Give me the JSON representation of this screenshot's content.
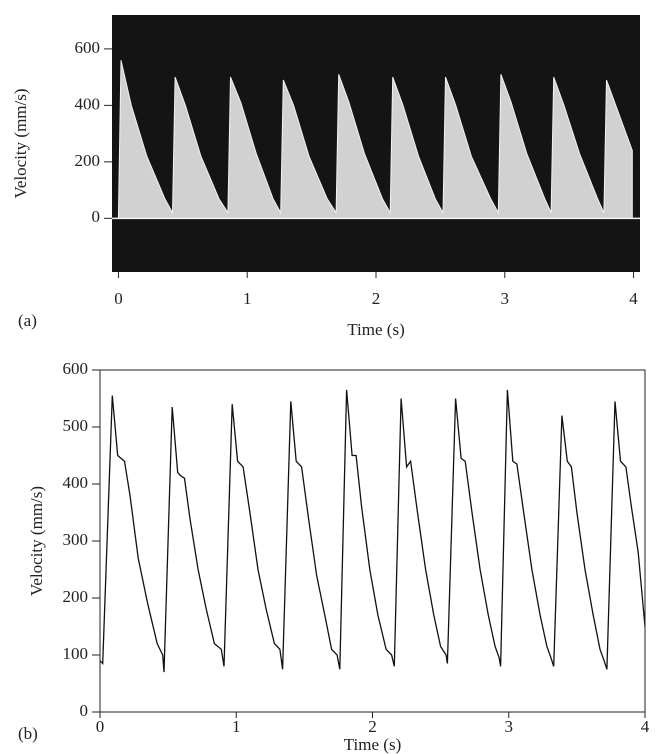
{
  "chart_data": [
    {
      "type": "area",
      "panel_label": "(a)",
      "xlabel": "Time (s)",
      "ylabel": "Velocity (mm/s)",
      "background": "#141414",
      "color": "#f2f2f2",
      "xlim": [
        -0.05,
        4.05
      ],
      "ylim": [
        -190,
        720
      ],
      "xticks": [
        0,
        1,
        2,
        3,
        4
      ],
      "yticks": [
        0,
        200,
        400,
        600
      ],
      "x": [
        0,
        0.02,
        0.1,
        0.22,
        0.36,
        0.42,
        0.44,
        0.52,
        0.64,
        0.78,
        0.85,
        0.87,
        0.95,
        1.07,
        1.2,
        1.26,
        1.28,
        1.36,
        1.48,
        1.62,
        1.69,
        1.71,
        1.79,
        1.91,
        2.05,
        2.11,
        2.13,
        2.21,
        2.33,
        2.46,
        2.52,
        2.54,
        2.62,
        2.74,
        2.89,
        2.95,
        2.97,
        3.05,
        3.17,
        3.31,
        3.36,
        3.38,
        3.46,
        3.58,
        3.72,
        3.77,
        3.79,
        3.87,
        3.99
      ],
      "values": [
        0,
        560,
        400,
        220,
        70,
        20,
        500,
        400,
        220,
        70,
        20,
        500,
        410,
        230,
        70,
        20,
        490,
        400,
        220,
        70,
        20,
        510,
        410,
        230,
        70,
        20,
        500,
        400,
        220,
        70,
        20,
        500,
        400,
        220,
        70,
        20,
        510,
        410,
        230,
        70,
        20,
        500,
        400,
        230,
        70,
        20,
        490,
        390,
        240
      ]
    },
    {
      "type": "line",
      "panel_label": "(b)",
      "xlabel": "Time (s)",
      "ylabel": "Velocity (mm/s)",
      "color": "#111111",
      "xlim": [
        0,
        4
      ],
      "ylim": [
        0,
        600
      ],
      "xticks": [
        0,
        1,
        2,
        3,
        4
      ],
      "yticks": [
        0,
        100,
        200,
        300,
        400,
        500,
        600
      ],
      "x": [
        0,
        0.02,
        0.09,
        0.13,
        0.18,
        0.22,
        0.28,
        0.35,
        0.42,
        0.46,
        0.47,
        0.53,
        0.57,
        0.59,
        0.62,
        0.66,
        0.72,
        0.78,
        0.84,
        0.89,
        0.91,
        0.97,
        1.01,
        1.05,
        1.1,
        1.16,
        1.22,
        1.28,
        1.32,
        1.34,
        1.4,
        1.44,
        1.48,
        1.53,
        1.59,
        1.65,
        1.7,
        1.74,
        1.76,
        1.81,
        1.85,
        1.88,
        1.92,
        1.98,
        2.04,
        2.1,
        2.14,
        2.16,
        2.21,
        2.25,
        2.28,
        2.33,
        2.39,
        2.45,
        2.5,
        2.54,
        2.55,
        2.61,
        2.65,
        2.68,
        2.73,
        2.79,
        2.85,
        2.9,
        2.93,
        2.94,
        2.99,
        3.03,
        3.06,
        3.11,
        3.17,
        3.23,
        3.28,
        3.31,
        3.33,
        3.39,
        3.43,
        3.46,
        3.5,
        3.56,
        3.62,
        3.67,
        3.7,
        3.72,
        3.78,
        3.82,
        3.86,
        3.9,
        3.95,
        4.0
      ],
      "values": [
        90,
        85,
        555,
        450,
        440,
        380,
        270,
        190,
        120,
        100,
        70,
        535,
        420,
        415,
        410,
        340,
        250,
        180,
        120,
        110,
        80,
        540,
        440,
        430,
        350,
        250,
        180,
        120,
        110,
        75,
        545,
        440,
        430,
        340,
        240,
        170,
        110,
        100,
        75,
        565,
        450,
        450,
        360,
        250,
        170,
        110,
        100,
        80,
        550,
        430,
        440,
        350,
        250,
        170,
        115,
        100,
        85,
        550,
        445,
        440,
        350,
        250,
        170,
        115,
        95,
        80,
        565,
        440,
        435,
        350,
        250,
        170,
        115,
        95,
        80,
        520,
        440,
        430,
        350,
        250,
        170,
        110,
        90,
        75,
        545,
        440,
        430,
        360,
        280,
        150
      ]
    }
  ]
}
